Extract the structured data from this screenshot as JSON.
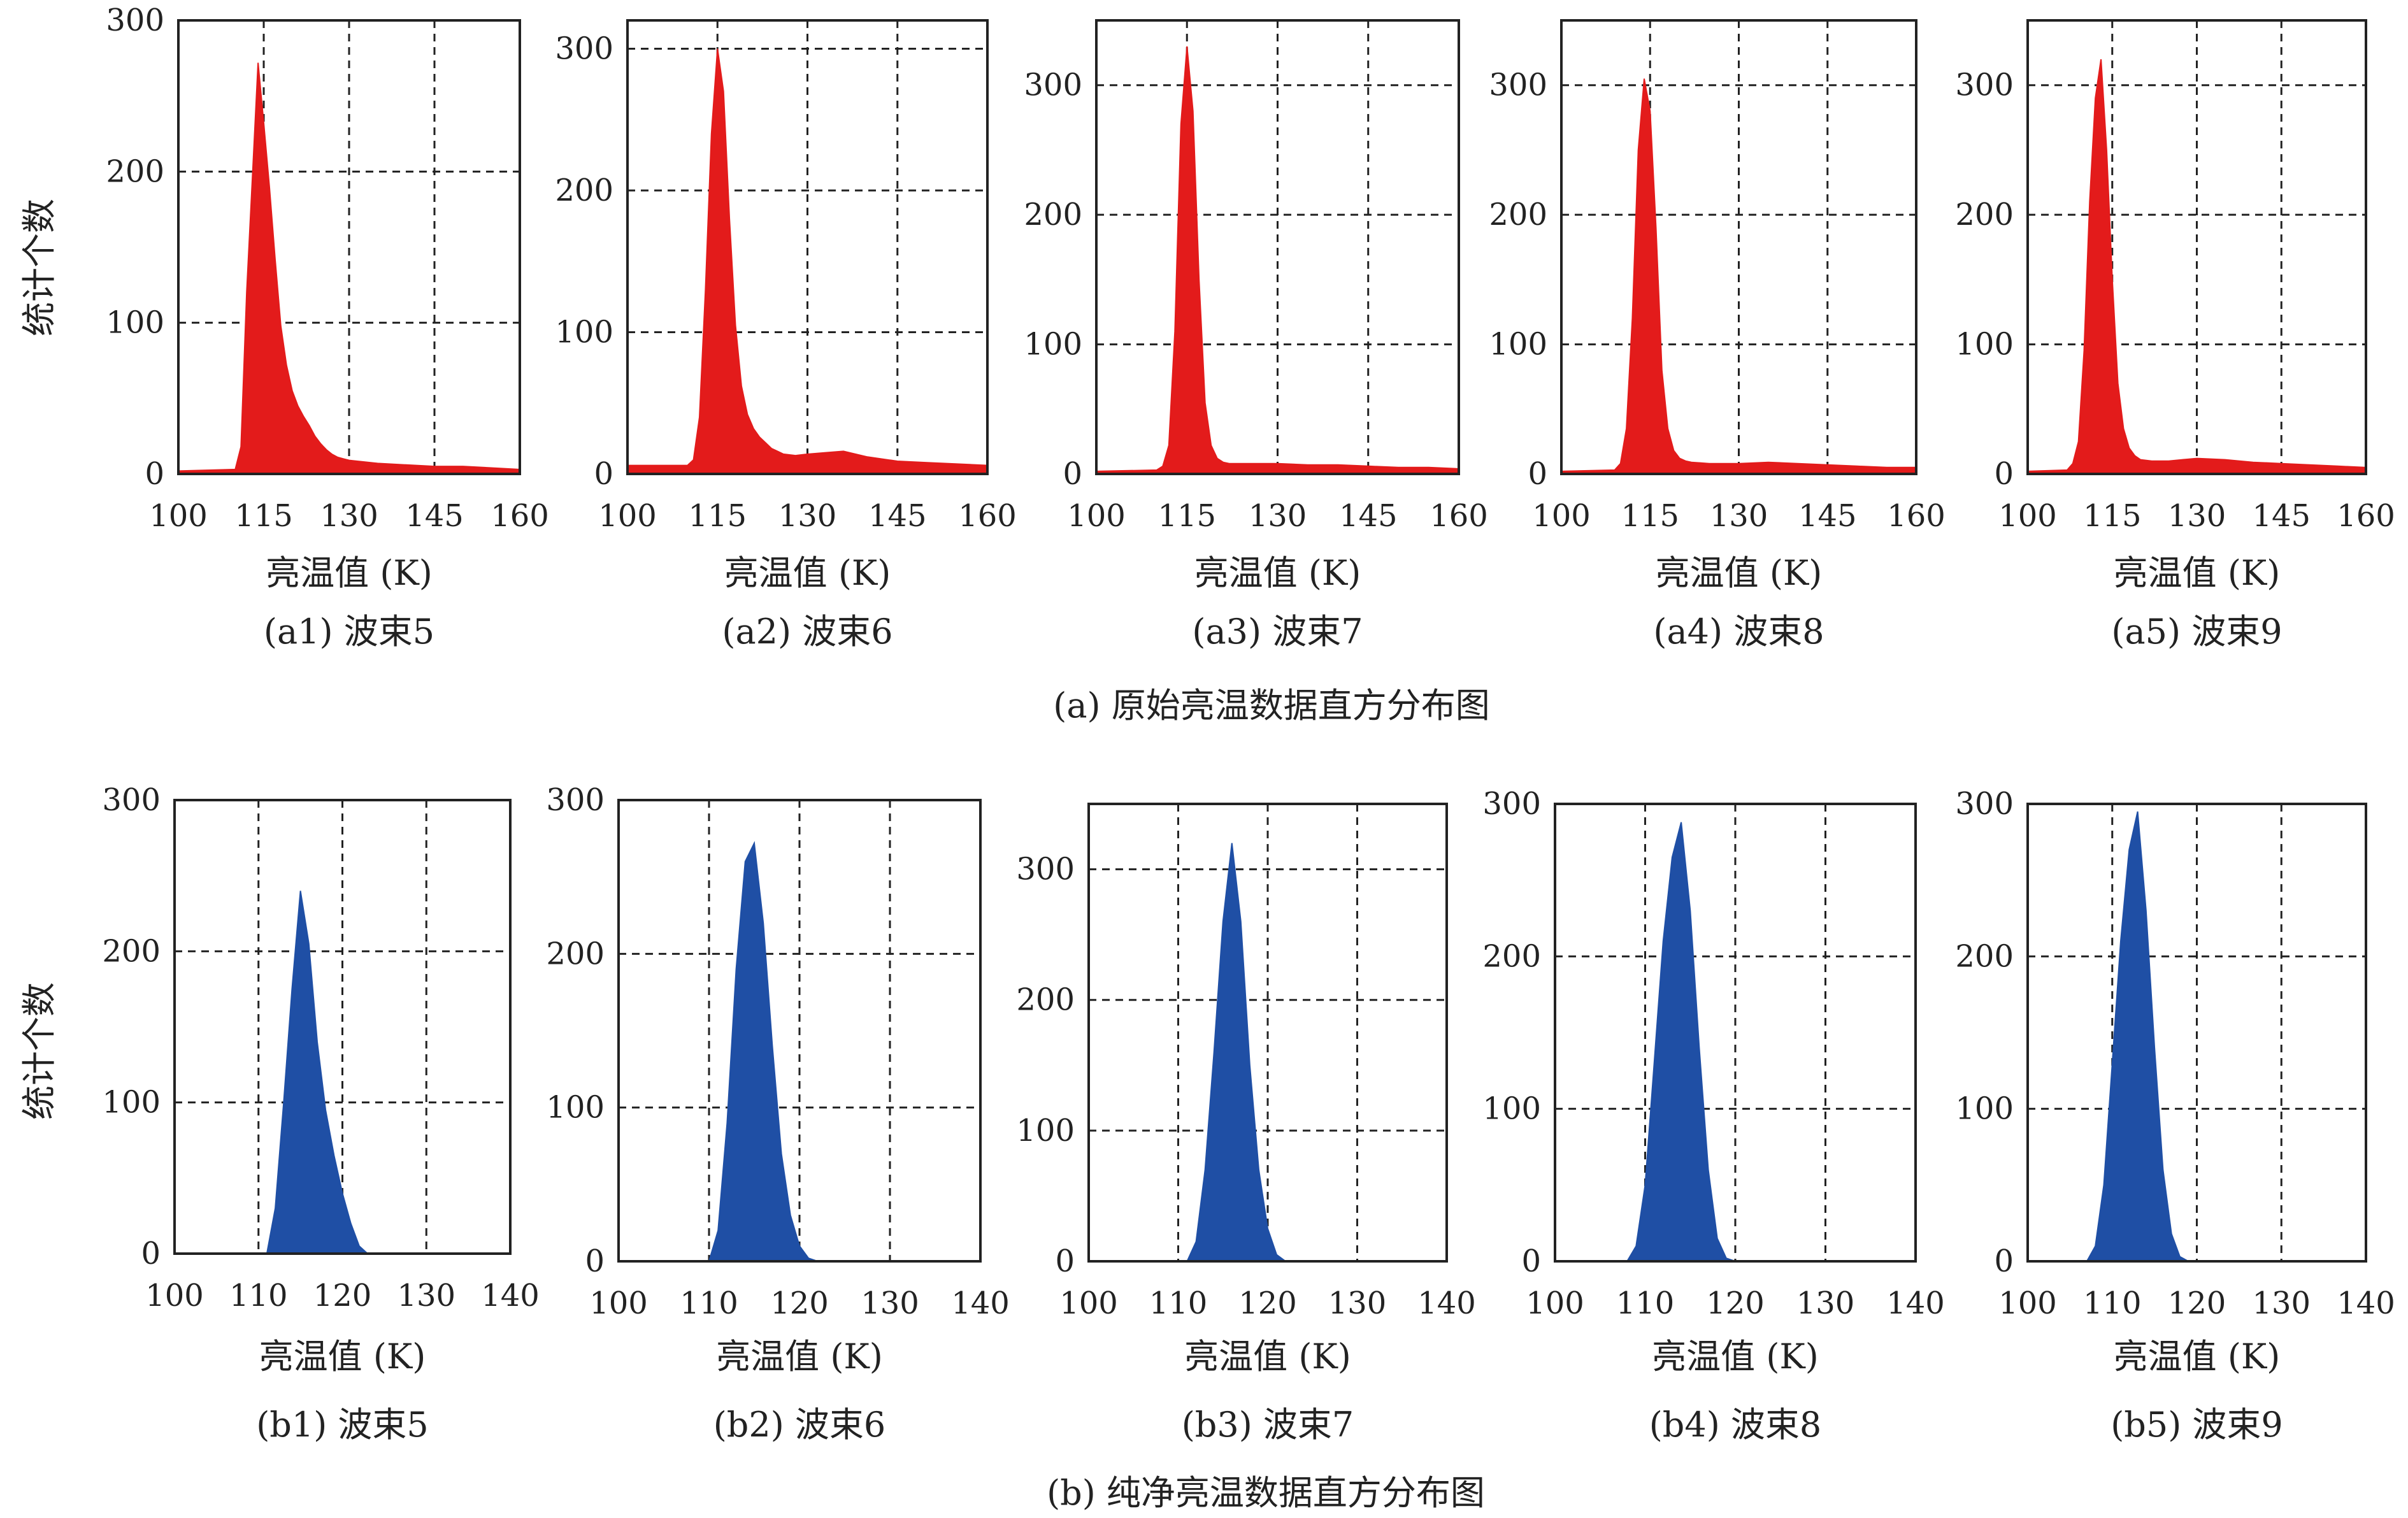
{
  "colors": {
    "row_a": "#e31b1b",
    "row_b": "#1f4fa5",
    "grid": "#222222"
  },
  "ylabel": "统计个数",
  "group_captions": {
    "a": "(a) 原始亮温数据直方分布图",
    "b": "(b) 纯净亮温数据直方分布图"
  },
  "chart_data": [
    {
      "id": "a1",
      "type": "area",
      "row": "a",
      "caption": "(a1) 波束5",
      "xlabel": "亮温值 (K)",
      "ylabel": "统计个数",
      "xlim": [
        100,
        160
      ],
      "ylim": [
        0,
        300
      ],
      "xticks": [
        100,
        115,
        130,
        145,
        160
      ],
      "yticks": [
        0,
        100,
        200,
        300
      ],
      "grid": true,
      "x": [
        100,
        110,
        111,
        112,
        113,
        114,
        115,
        116,
        117,
        118,
        119,
        120,
        121,
        122,
        123,
        124,
        125,
        126,
        127,
        128,
        129,
        130,
        135,
        140,
        145,
        150,
        155,
        160
      ],
      "y": [
        2,
        3,
        18,
        120,
        195,
        272,
        232,
        190,
        142,
        98,
        72,
        55,
        45,
        38,
        32,
        25,
        20,
        16,
        13,
        11,
        10,
        9,
        7,
        6,
        5,
        5,
        4,
        3
      ]
    },
    {
      "id": "a2",
      "type": "area",
      "row": "a",
      "caption": "(a2) 波束6",
      "xlabel": "亮温值 (K)",
      "ylabel": "",
      "xlim": [
        100,
        160
      ],
      "ylim": [
        0,
        320
      ],
      "xticks": [
        100,
        115,
        130,
        145,
        160
      ],
      "yticks": [
        0,
        100,
        200,
        300
      ],
      "grid": true,
      "x": [
        100,
        110,
        111,
        112,
        113,
        114,
        115,
        116,
        117,
        118,
        119,
        120,
        121,
        122,
        123,
        124,
        125,
        126,
        128,
        130,
        133,
        136,
        140,
        145,
        150,
        155,
        160
      ],
      "y": [
        6,
        6,
        10,
        40,
        130,
        240,
        300,
        270,
        180,
        105,
        62,
        42,
        32,
        26,
        22,
        18,
        16,
        14,
        13,
        14,
        15,
        16,
        12,
        9,
        8,
        7,
        6
      ]
    },
    {
      "id": "a3",
      "type": "area",
      "row": "a",
      "caption": "(a3) 波束7",
      "xlabel": "亮温值 (K)",
      "ylabel": "",
      "xlim": [
        100,
        160
      ],
      "ylim": [
        0,
        350
      ],
      "xticks": [
        100,
        115,
        130,
        145,
        160
      ],
      "yticks": [
        0,
        100,
        200,
        300
      ],
      "grid": true,
      "x": [
        100,
        110,
        111,
        112,
        113,
        114,
        115,
        116,
        117,
        118,
        119,
        120,
        121,
        122,
        125,
        130,
        135,
        140,
        145,
        150,
        155,
        160
      ],
      "y": [
        2,
        3,
        6,
        22,
        110,
        270,
        330,
        280,
        150,
        55,
        22,
        12,
        9,
        8,
        8,
        8,
        7,
        7,
        6,
        5,
        5,
        4
      ]
    },
    {
      "id": "a4",
      "type": "area",
      "row": "a",
      "caption": "(a4) 波束8",
      "xlabel": "亮温值 (K)",
      "ylabel": "",
      "xlim": [
        100,
        160
      ],
      "ylim": [
        0,
        350
      ],
      "xticks": [
        100,
        115,
        130,
        145,
        160
      ],
      "yticks": [
        0,
        100,
        200,
        300
      ],
      "grid": true,
      "x": [
        100,
        109,
        110,
        111,
        112,
        113,
        114,
        115,
        116,
        117,
        118,
        119,
        120,
        121,
        122,
        125,
        130,
        135,
        140,
        145,
        150,
        155,
        160
      ],
      "y": [
        2,
        3,
        8,
        35,
        120,
        250,
        305,
        280,
        190,
        80,
        35,
        18,
        12,
        10,
        9,
        8,
        8,
        9,
        8,
        7,
        6,
        5,
        5
      ]
    },
    {
      "id": "a5",
      "type": "area",
      "row": "a",
      "caption": "(a5) 波束9",
      "xlabel": "亮温值 (K)",
      "ylabel": "",
      "xlim": [
        100,
        160
      ],
      "ylim": [
        0,
        350
      ],
      "xticks": [
        100,
        115,
        130,
        145,
        160
      ],
      "yticks": [
        0,
        100,
        200,
        300
      ],
      "grid": true,
      "x": [
        100,
        107,
        108,
        109,
        110,
        111,
        112,
        113,
        114,
        115,
        116,
        117,
        118,
        119,
        120,
        122,
        125,
        130,
        135,
        140,
        145,
        150,
        155,
        160
      ],
      "y": [
        2,
        3,
        8,
        25,
        95,
        210,
        290,
        320,
        250,
        150,
        70,
        35,
        20,
        14,
        11,
        10,
        10,
        12,
        11,
        9,
        8,
        7,
        6,
        5
      ]
    },
    {
      "id": "b1",
      "type": "area",
      "row": "b",
      "caption": "(b1) 波束5",
      "xlabel": "亮温值 (K)",
      "ylabel": "统计个数",
      "xlim": [
        100,
        140
      ],
      "ylim": [
        0,
        300
      ],
      "xticks": [
        100,
        110,
        120,
        130,
        140
      ],
      "yticks": [
        0,
        100,
        200,
        300
      ],
      "grid": true,
      "x": [
        100,
        111,
        112,
        113,
        114,
        115,
        116,
        117,
        118,
        119,
        120,
        121,
        122,
        123,
        140
      ],
      "y": [
        0,
        0,
        30,
        100,
        175,
        240,
        205,
        140,
        95,
        65,
        40,
        20,
        5,
        0,
        0
      ]
    },
    {
      "id": "b2",
      "type": "area",
      "row": "b",
      "caption": "(b2) 波束6",
      "xlabel": "亮温值 (K)",
      "ylabel": "",
      "xlim": [
        100,
        140
      ],
      "ylim": [
        0,
        300
      ],
      "xticks": [
        100,
        110,
        120,
        130,
        140
      ],
      "yticks": [
        0,
        100,
        200,
        300
      ],
      "grid": true,
      "x": [
        100,
        110,
        111,
        112,
        113,
        114,
        115,
        116,
        117,
        118,
        119,
        120,
        121,
        122,
        140
      ],
      "y": [
        0,
        0,
        20,
        90,
        190,
        260,
        272,
        220,
        140,
        70,
        30,
        10,
        2,
        0,
        0
      ]
    },
    {
      "id": "b3",
      "type": "area",
      "row": "b",
      "caption": "(b3) 波束7",
      "xlabel": "亮温值 (K)",
      "ylabel": "",
      "xlim": [
        100,
        140
      ],
      "ylim": [
        0,
        350
      ],
      "xticks": [
        100,
        110,
        120,
        130,
        140
      ],
      "yticks": [
        0,
        100,
        200,
        300
      ],
      "grid": true,
      "x": [
        100,
        111,
        112,
        113,
        114,
        115,
        116,
        117,
        118,
        119,
        120,
        121,
        122,
        140
      ],
      "y": [
        0,
        0,
        15,
        70,
        160,
        260,
        320,
        260,
        150,
        70,
        25,
        5,
        0,
        0
      ]
    },
    {
      "id": "b4",
      "type": "area",
      "row": "b",
      "caption": "(b4) 波束8",
      "xlabel": "亮温值 (K)",
      "ylabel": "",
      "xlim": [
        100,
        140
      ],
      "ylim": [
        0,
        300
      ],
      "xticks": [
        100,
        110,
        120,
        130,
        140
      ],
      "yticks": [
        0,
        100,
        200,
        300
      ],
      "grid": true,
      "x": [
        100,
        108,
        109,
        110,
        111,
        112,
        113,
        114,
        115,
        116,
        117,
        118,
        119,
        120,
        140
      ],
      "y": [
        0,
        0,
        10,
        50,
        130,
        210,
        265,
        288,
        230,
        140,
        60,
        15,
        2,
        0,
        0
      ]
    },
    {
      "id": "b5",
      "type": "area",
      "row": "b",
      "caption": "(b5) 波束9",
      "xlabel": "亮温值 (K)",
      "ylabel": "",
      "xlim": [
        100,
        140
      ],
      "ylim": [
        0,
        300
      ],
      "xticks": [
        100,
        110,
        120,
        130,
        140
      ],
      "yticks": [
        0,
        100,
        200,
        300
      ],
      "grid": true,
      "x": [
        100,
        107,
        108,
        109,
        110,
        111,
        112,
        113,
        114,
        115,
        116,
        117,
        118,
        119,
        140
      ],
      "y": [
        0,
        0,
        10,
        50,
        130,
        210,
        270,
        295,
        230,
        140,
        60,
        18,
        3,
        0,
        0
      ]
    }
  ]
}
